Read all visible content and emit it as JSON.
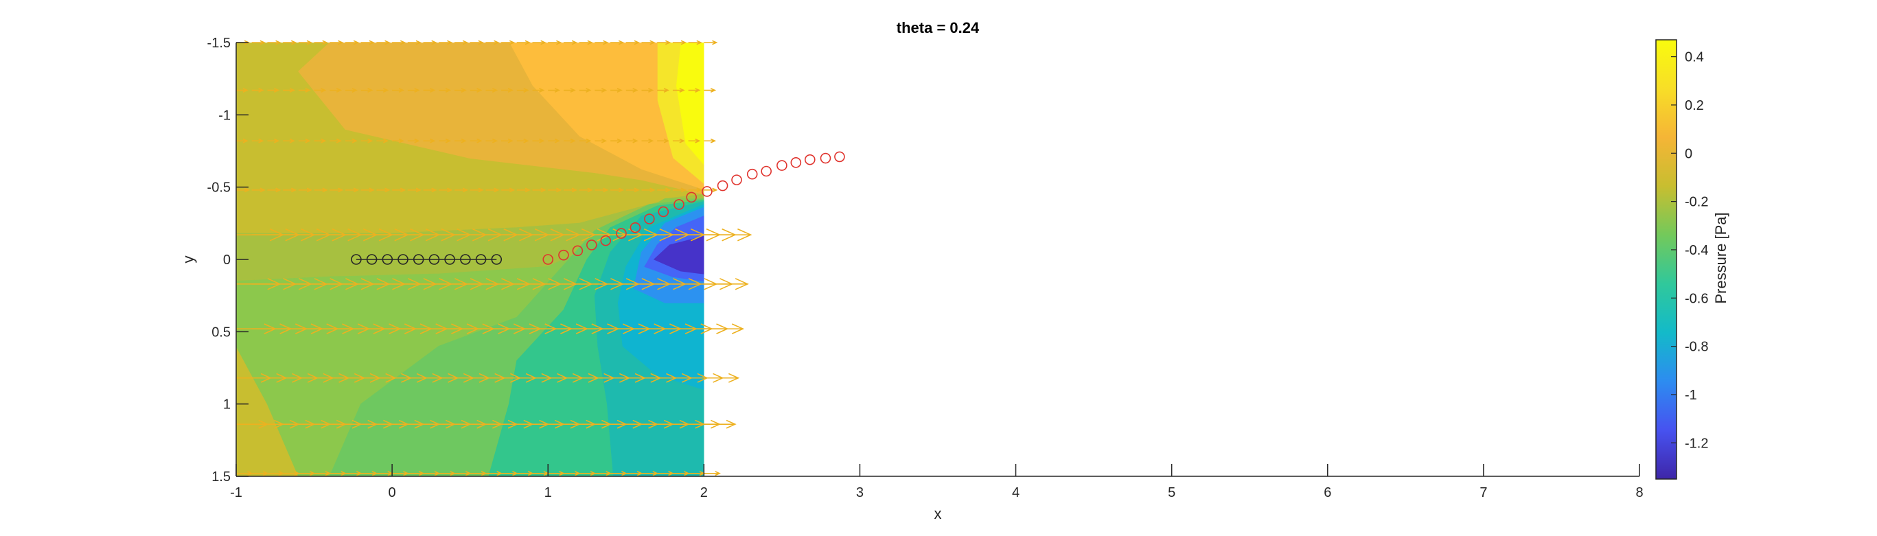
{
  "chart_data": {
    "type": "contour",
    "title": "theta = 0.24",
    "xlabel": "x",
    "ylabel": "y",
    "xlim": [
      -1,
      8
    ],
    "ylim": [
      -1.5,
      1.5
    ],
    "y_axis_direction": "reverse",
    "xticks": [
      -1,
      0,
      1,
      2,
      3,
      4,
      5,
      6,
      7,
      8
    ],
    "yticks": [
      -1.5,
      -1,
      -0.5,
      0,
      0.5,
      1,
      1.5
    ],
    "field_extent": {
      "x": [
        -1,
        2
      ],
      "y": [
        -1.5,
        1.5
      ]
    },
    "colorbar": {
      "label": "Pressure [Pa]",
      "range": [
        -1.35,
        0.47
      ],
      "ticks": [
        0.4,
        0.2,
        0,
        -0.2,
        -0.4,
        -0.6,
        -0.8,
        -1,
        -1.2
      ],
      "colormap": [
        "#3E26A8",
        "#4752F0",
        "#2D8CF0",
        "#13BAC9",
        "#30C89B",
        "#73C95B",
        "#C8BE30",
        "#F5B536",
        "#F8DE27",
        "#F9FB0E"
      ]
    },
    "contour_regions": [
      {
        "value": 0.4,
        "color": "#F9FB0E",
        "points": [
          [
            1.85,
            -1.5
          ],
          [
            2,
            -1.5
          ],
          [
            2,
            -0.65
          ],
          [
            1.88,
            -0.8
          ],
          [
            1.82,
            -1.2
          ]
        ]
      },
      {
        "value": 0.3,
        "color": "#F5E52A",
        "points": [
          [
            1.7,
            -1.5
          ],
          [
            1.85,
            -1.5
          ],
          [
            1.82,
            -1.2
          ],
          [
            1.88,
            -0.8
          ],
          [
            2,
            -0.65
          ],
          [
            2,
            -0.52
          ],
          [
            1.8,
            -0.7
          ],
          [
            1.7,
            -1.1
          ]
        ]
      },
      {
        "value": 0.2,
        "color": "#FDBD3C",
        "points": [
          [
            0.75,
            -1.5
          ],
          [
            1.7,
            -1.5
          ],
          [
            1.7,
            -1.1
          ],
          [
            1.8,
            -0.7
          ],
          [
            2,
            -0.52
          ],
          [
            2,
            -0.48
          ],
          [
            1.6,
            -0.62
          ],
          [
            1.2,
            -0.85
          ],
          [
            0.9,
            -1.2
          ]
        ]
      },
      {
        "value": 0.1,
        "color": "#E8B43A",
        "points": [
          [
            -0.4,
            -1.5
          ],
          [
            0.75,
            -1.5
          ],
          [
            0.9,
            -1.2
          ],
          [
            1.2,
            -0.85
          ],
          [
            1.6,
            -0.62
          ],
          [
            2,
            -0.48
          ],
          [
            2,
            -0.45
          ],
          [
            1.6,
            -0.55
          ],
          [
            1.3,
            -0.6
          ],
          [
            0.5,
            -0.7
          ],
          [
            -0.3,
            -0.9
          ],
          [
            -0.6,
            -1.3
          ]
        ]
      },
      {
        "value": -0.05,
        "color": "#A7C040",
        "points": [
          [
            -1,
            0.15
          ],
          [
            -0.4,
            0.12
          ],
          [
            0.3,
            0.1
          ],
          [
            1,
            0.05
          ],
          [
            1.3,
            -0.1
          ],
          [
            1.55,
            -0.3
          ],
          [
            1.75,
            -0.42
          ],
          [
            2,
            -0.45
          ],
          [
            2,
            -0.42
          ],
          [
            1.72,
            -0.4
          ],
          [
            1.2,
            -0.25
          ],
          [
            0.8,
            -0.22
          ],
          [
            0,
            -0.18
          ],
          [
            -1,
            -0.18
          ]
        ]
      },
      {
        "value": -0.1,
        "color": "#8CC84C",
        "points": [
          [
            -1,
            0.15
          ],
          [
            -0.4,
            0.12
          ],
          [
            0.3,
            0.1
          ],
          [
            1,
            0.05
          ],
          [
            1.3,
            -0.1
          ],
          [
            1.55,
            -0.3
          ],
          [
            1.75,
            -0.42
          ],
          [
            2,
            -0.42
          ],
          [
            2,
            1.5
          ],
          [
            -0.6,
            1.5
          ],
          [
            -0.8,
            1
          ],
          [
            -1,
            0.6
          ]
        ]
      },
      {
        "value": -0.2,
        "color": "#6EC860",
        "points": [
          [
            -0.4,
            1.5
          ],
          [
            -0.2,
            1
          ],
          [
            0.3,
            0.6
          ],
          [
            0.8,
            0.4
          ],
          [
            1.05,
            0.1
          ],
          [
            1.3,
            -0.2
          ],
          [
            1.65,
            -0.38
          ],
          [
            2,
            -0.42
          ],
          [
            2,
            1.5
          ]
        ]
      },
      {
        "value": -0.3,
        "color": "#33C68C",
        "points": [
          [
            0.62,
            1.5
          ],
          [
            0.75,
            1
          ],
          [
            0.8,
            0.7
          ],
          [
            1.1,
            0.35
          ],
          [
            1.25,
            0.0
          ],
          [
            1.4,
            -0.22
          ],
          [
            1.7,
            -0.37
          ],
          [
            2,
            -0.41
          ],
          [
            2,
            1.5
          ]
        ]
      },
      {
        "value": -0.45,
        "color": "#1EBAAE",
        "points": [
          [
            1.42,
            1.5
          ],
          [
            1.38,
            1
          ],
          [
            1.32,
            0.6
          ],
          [
            1.3,
            0.25
          ],
          [
            1.4,
            -0.05
          ],
          [
            1.6,
            -0.3
          ],
          [
            2,
            -0.4
          ],
          [
            2,
            1.5
          ]
        ]
      },
      {
        "value": -0.6,
        "color": "#0FB4D0",
        "points": [
          [
            1.48,
            0.6
          ],
          [
            1.45,
            0.3
          ],
          [
            1.5,
            0.05
          ],
          [
            1.65,
            -0.22
          ],
          [
            2,
            -0.38
          ],
          [
            2,
            0.9
          ],
          [
            1.7,
            0.8
          ]
        ]
      },
      {
        "value": -0.8,
        "color": "#2C92F0",
        "points": [
          [
            1.55,
            0.2
          ],
          [
            1.6,
            -0.05
          ],
          [
            1.75,
            -0.25
          ],
          [
            2,
            -0.36
          ],
          [
            2,
            0.3
          ],
          [
            1.75,
            0.3
          ]
        ]
      },
      {
        "value": -1.0,
        "color": "#4565F7",
        "points": [
          [
            1.62,
            0.05
          ],
          [
            1.7,
            -0.1
          ],
          [
            1.82,
            -0.22
          ],
          [
            2,
            -0.3
          ],
          [
            2,
            0.15
          ],
          [
            1.8,
            0.12
          ]
        ]
      },
      {
        "value": -1.2,
        "color": "#4633C9",
        "points": [
          [
            1.68,
            0.0
          ],
          [
            1.78,
            -0.1
          ],
          [
            2,
            -0.16
          ],
          [
            2,
            0.1
          ],
          [
            1.85,
            0.08
          ]
        ]
      }
    ],
    "black_circles": {
      "x": [
        -0.23,
        -0.13,
        -0.03,
        0.07,
        0.17,
        0.27,
        0.37,
        0.47,
        0.57,
        0.67
      ],
      "y": [
        0,
        0,
        0,
        0,
        0,
        0,
        0,
        0,
        0,
        0
      ],
      "color": "#262626"
    },
    "red_circles": {
      "x": [
        1.0,
        1.1,
        1.19,
        1.28,
        1.37,
        1.47,
        1.56,
        1.65,
        1.74,
        1.84,
        1.92,
        2.02,
        2.12,
        2.21,
        2.31,
        2.4,
        2.5,
        2.59,
        2.68,
        2.78,
        2.87
      ],
      "y": [
        0,
        -0.03,
        -0.06,
        -0.1,
        -0.13,
        -0.18,
        -0.22,
        -0.28,
        -0.33,
        -0.38,
        -0.43,
        -0.47,
        -0.51,
        -0.55,
        -0.59,
        -0.61,
        -0.65,
        -0.67,
        -0.69,
        -0.7,
        -0.71
      ],
      "color": "#E0342E"
    },
    "vector_arrows": {
      "color": "#EDB120",
      "rows_y": [
        -1.5,
        -1.17,
        -0.82,
        -0.48,
        -0.17,
        0.17,
        0.48,
        0.82,
        1.14,
        1.48
      ],
      "x_start": -1.0,
      "x_step": 0.1,
      "x_end": 2.0,
      "lengths_x": [
        0.08,
        0.07,
        0.07,
        0.08,
        0.3,
        0.28,
        0.25,
        0.22,
        0.2,
        0.1
      ]
    }
  }
}
